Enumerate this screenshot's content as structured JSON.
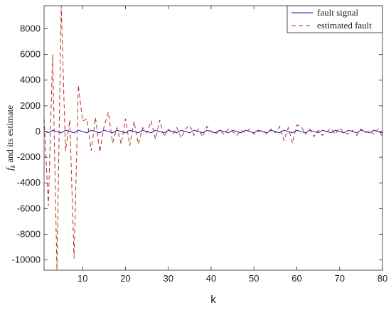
{
  "chart_data": {
    "type": "line",
    "title": "",
    "xlabel": "k",
    "ylabel_main": "f",
    "ylabel_sub": "k",
    "ylabel_rest": " and its estimate",
    "xlim": [
      1,
      80
    ],
    "ylim": [
      -10800,
      9800
    ],
    "xticks": [
      10,
      20,
      30,
      40,
      50,
      60,
      70,
      80
    ],
    "yticks": [
      -10000,
      -8000,
      -6000,
      -4000,
      -2000,
      0,
      2000,
      4000,
      6000,
      8000
    ],
    "grid": false,
    "legend_position": "top-right",
    "series": [
      {
        "name": "fault signal",
        "color": "#1a1acd",
        "dash": "solid",
        "x": [
          1,
          2,
          3,
          4,
          5,
          6,
          7,
          8,
          9,
          10,
          11,
          12,
          13,
          14,
          15,
          16,
          17,
          18,
          19,
          20,
          21,
          22,
          23,
          24,
          25,
          26,
          27,
          28,
          29,
          30,
          31,
          32,
          33,
          34,
          35,
          36,
          37,
          38,
          39,
          40,
          41,
          42,
          43,
          44,
          45,
          46,
          47,
          48,
          49,
          50,
          51,
          52,
          53,
          54,
          55,
          56,
          57,
          58,
          59,
          60,
          61,
          62,
          63,
          64,
          65,
          66,
          67,
          68,
          69,
          70,
          71,
          72,
          73,
          74,
          75,
          76,
          77,
          78,
          79,
          80
        ],
        "values": [
          50,
          -100,
          100,
          0,
          -100,
          100,
          0,
          -100,
          100,
          0,
          -100,
          100,
          0,
          -100,
          100,
          0,
          -100,
          100,
          0,
          -100,
          100,
          0,
          -100,
          100,
          0,
          -100,
          100,
          0,
          -100,
          100,
          0,
          -100,
          100,
          0,
          -100,
          100,
          0,
          -100,
          100,
          0,
          -100,
          100,
          0,
          -100,
          100,
          0,
          -100,
          100,
          0,
          -100,
          100,
          0,
          -100,
          100,
          0,
          -100,
          100,
          0,
          -100,
          100,
          0,
          -100,
          100,
          0,
          -100,
          100,
          0,
          -100,
          100,
          0,
          -100,
          100,
          0,
          -100,
          100,
          0,
          -100,
          100,
          0,
          -100
        ]
      },
      {
        "name": "estimated fault",
        "color": "#b5301a",
        "dash": "dashed",
        "x": [
          1,
          2,
          3,
          4,
          5,
          6,
          7,
          8,
          9,
          10,
          11,
          12,
          13,
          14,
          15,
          16,
          17,
          18,
          19,
          20,
          21,
          22,
          23,
          24,
          25,
          26,
          27,
          28,
          29,
          30,
          31,
          32,
          33,
          34,
          35,
          36,
          37,
          38,
          39,
          40,
          41,
          42,
          43,
          44,
          45,
          46,
          47,
          48,
          49,
          50,
          51,
          52,
          53,
          54,
          55,
          56,
          57,
          58,
          59,
          60,
          61,
          62,
          63,
          64,
          65,
          66,
          67,
          68,
          69,
          70,
          71,
          72,
          73,
          74,
          75,
          76,
          77,
          78,
          79,
          80
        ],
        "values": [
          1000,
          -5800,
          6000,
          -10800,
          9800,
          -1500,
          900,
          -9900,
          3600,
          800,
          1000,
          -1500,
          1100,
          -1600,
          400,
          1500,
          -900,
          300,
          -1000,
          1000,
          -1100,
          800,
          -1000,
          300,
          -100,
          800,
          -600,
          900,
          -400,
          200,
          -200,
          300,
          -500,
          200,
          500,
          -300,
          200,
          -400,
          400,
          0,
          -200,
          100,
          -200,
          200,
          0,
          -300,
          100,
          -100,
          200,
          -200,
          0,
          100,
          -200,
          200,
          -100,
          400,
          -700,
          300,
          -900,
          500,
          400,
          -200,
          200,
          -400,
          100,
          -300,
          0,
          200,
          -200,
          300,
          -100,
          -200,
          100,
          -300,
          200,
          -100,
          100,
          -200,
          200,
          -400
        ]
      }
    ]
  }
}
